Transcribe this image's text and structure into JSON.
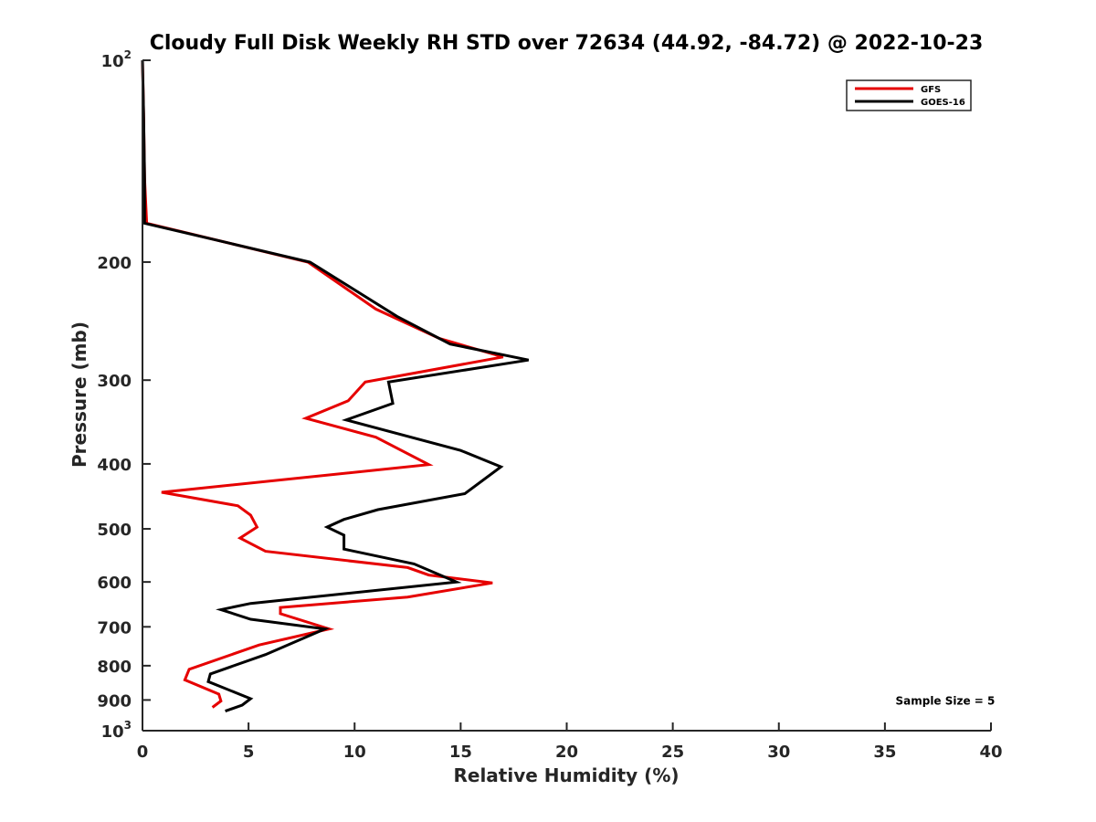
{
  "chart_data": {
    "type": "line",
    "title": "Cloudy Full Disk Weekly RH STD over 72634 (44.92, -84.72) @ 2022-10-23",
    "xlabel": "Relative Humidity (%)",
    "ylabel": "Pressure (mb)",
    "xlim": [
      0,
      40
    ],
    "ylim": [
      100,
      1000
    ],
    "y_scale": "log",
    "y_reversed": true,
    "grid": false,
    "legend_position": "top-right",
    "x_ticks": [
      0,
      5,
      10,
      15,
      20,
      25,
      30,
      35,
      40
    ],
    "x_tick_labels": [
      "0",
      "5",
      "10",
      "15",
      "20",
      "25",
      "30",
      "35",
      "40"
    ],
    "y_ticks": [
      {
        "value": 100,
        "label": "10",
        "sup": "2"
      },
      {
        "value": 200,
        "label": "200",
        "sup": ""
      },
      {
        "value": 300,
        "label": "300",
        "sup": ""
      },
      {
        "value": 400,
        "label": "400",
        "sup": ""
      },
      {
        "value": 500,
        "label": "500",
        "sup": ""
      },
      {
        "value": 600,
        "label": "600",
        "sup": ""
      },
      {
        "value": 700,
        "label": "700",
        "sup": ""
      },
      {
        "value": 800,
        "label": "800",
        "sup": ""
      },
      {
        "value": 900,
        "label": "900",
        "sup": ""
      },
      {
        "value": 1000,
        "label": "10",
        "sup": "3"
      }
    ],
    "series": [
      {
        "name": "GFS",
        "color": "#e60000",
        "points": [
          [
            0.0,
            100
          ],
          [
            0.05,
            120
          ],
          [
            0.1,
            150
          ],
          [
            0.2,
            175
          ],
          [
            7.8,
            200
          ],
          [
            11.0,
            235
          ],
          [
            14.0,
            260
          ],
          [
            17.0,
            277
          ],
          [
            10.5,
            302
          ],
          [
            9.7,
            322
          ],
          [
            7.7,
            342
          ],
          [
            11.0,
            365
          ],
          [
            13.5,
            401
          ],
          [
            0.9,
            441
          ],
          [
            4.5,
            462
          ],
          [
            5.1,
            477
          ],
          [
            5.4,
            497
          ],
          [
            4.6,
            516
          ],
          [
            5.8,
            540
          ],
          [
            12.5,
            571
          ],
          [
            13.5,
            586
          ],
          [
            16.5,
            602
          ],
          [
            12.5,
            632
          ],
          [
            6.5,
            655
          ],
          [
            6.5,
            669
          ],
          [
            8.8,
            705
          ],
          [
            5.5,
            745
          ],
          [
            2.2,
            810
          ],
          [
            2.0,
            840
          ],
          [
            3.6,
            882
          ],
          [
            3.7,
            903
          ],
          [
            3.3,
            923
          ]
        ]
      },
      {
        "name": "GOES-16",
        "color": "#000000",
        "points": [
          [
            0.0,
            100
          ],
          [
            0.05,
            120
          ],
          [
            0.1,
            150
          ],
          [
            0.1,
            175
          ],
          [
            7.9,
            200
          ],
          [
            12.0,
            241
          ],
          [
            14.5,
            265
          ],
          [
            18.2,
            280
          ],
          [
            11.6,
            302
          ],
          [
            11.8,
            325
          ],
          [
            9.6,
            344
          ],
          [
            15.0,
            382
          ],
          [
            16.9,
            404
          ],
          [
            15.2,
            443
          ],
          [
            11.1,
            468
          ],
          [
            9.5,
            484
          ],
          [
            8.7,
            497
          ],
          [
            9.5,
            511
          ],
          [
            9.5,
            536
          ],
          [
            12.8,
            564
          ],
          [
            14.8,
            600
          ],
          [
            5.1,
            646
          ],
          [
            3.7,
            660
          ],
          [
            5.1,
            682
          ],
          [
            8.6,
            705
          ],
          [
            5.8,
            770
          ],
          [
            3.2,
            823
          ],
          [
            3.1,
            845
          ],
          [
            5.1,
            896
          ],
          [
            4.7,
            916
          ],
          [
            3.9,
            935
          ]
        ]
      }
    ],
    "annotations": [
      {
        "text": "Sample Size = 5",
        "x": 35.5,
        "y": 903
      }
    ]
  }
}
